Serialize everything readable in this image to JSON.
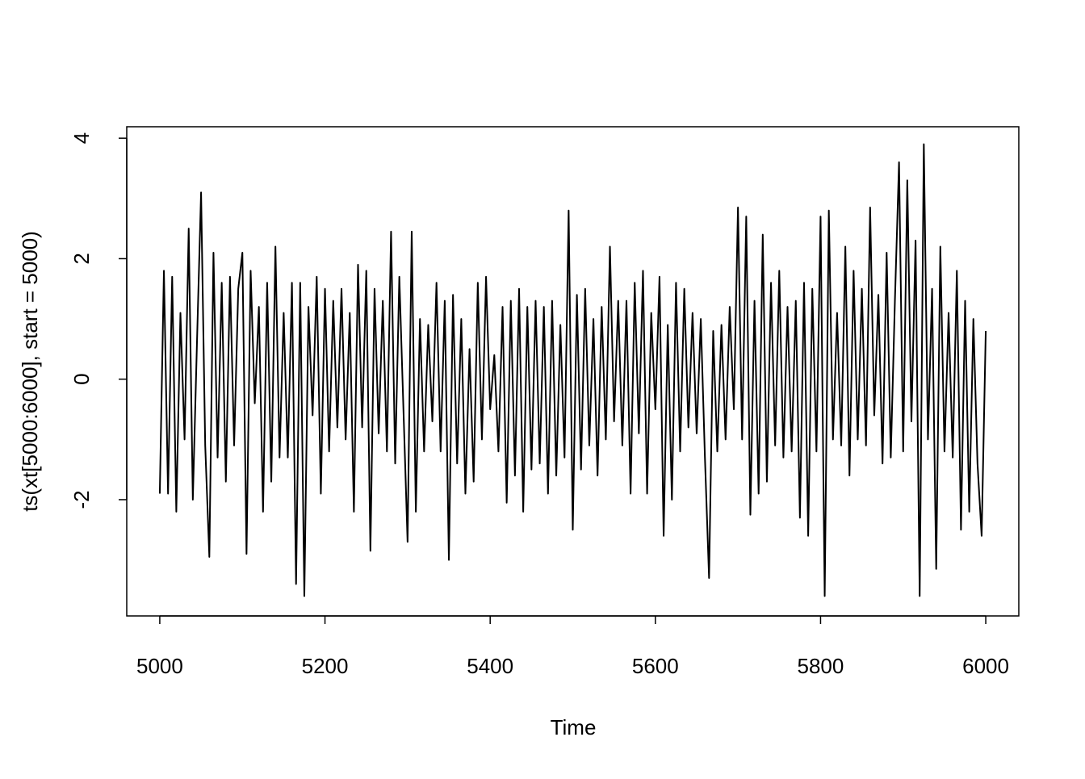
{
  "chart_data": {
    "type": "line",
    "x_label": "Time",
    "y_label": "ts(xt[5000:6000], start = 5000)",
    "x": [
      5000,
      5005,
      5010,
      5015,
      5020,
      5025,
      5030,
      5035,
      5040,
      5045,
      5050,
      5055,
      5060,
      5065,
      5070,
      5075,
      5080,
      5085,
      5090,
      5095,
      5100,
      5105,
      5110,
      5115,
      5120,
      5125,
      5130,
      5135,
      5140,
      5145,
      5150,
      5155,
      5160,
      5165,
      5170,
      5175,
      5180,
      5185,
      5190,
      5195,
      5200,
      5205,
      5210,
      5215,
      5220,
      5225,
      5230,
      5235,
      5240,
      5245,
      5250,
      5255,
      5260,
      5265,
      5270,
      5275,
      5280,
      5285,
      5290,
      5295,
      5300,
      5305,
      5310,
      5315,
      5320,
      5325,
      5330,
      5335,
      5340,
      5345,
      5350,
      5355,
      5360,
      5365,
      5370,
      5375,
      5380,
      5385,
      5390,
      5395,
      5400,
      5405,
      5410,
      5415,
      5420,
      5425,
      5430,
      5435,
      5440,
      5445,
      5450,
      5455,
      5460,
      5465,
      5470,
      5475,
      5480,
      5485,
      5490,
      5495,
      5500,
      5505,
      5510,
      5515,
      5520,
      5525,
      5530,
      5535,
      5540,
      5545,
      5550,
      5555,
      5560,
      5565,
      5570,
      5575,
      5580,
      5585,
      5590,
      5595,
      5600,
      5605,
      5610,
      5615,
      5620,
      5625,
      5630,
      5635,
      5640,
      5645,
      5650,
      5655,
      5660,
      5665,
      5670,
      5675,
      5680,
      5685,
      5690,
      5695,
      5700,
      5705,
      5710,
      5715,
      5720,
      5725,
      5730,
      5735,
      5740,
      5745,
      5750,
      5755,
      5760,
      5765,
      5770,
      5775,
      5780,
      5785,
      5790,
      5795,
      5800,
      5805,
      5810,
      5815,
      5820,
      5825,
      5830,
      5835,
      5840,
      5845,
      5850,
      5855,
      5860,
      5865,
      5870,
      5875,
      5880,
      5885,
      5890,
      5895,
      5900,
      5905,
      5910,
      5915,
      5920,
      5925,
      5930,
      5935,
      5940,
      5945,
      5950,
      5955,
      5960,
      5965,
      5970,
      5975,
      5980,
      5985,
      5990,
      5995,
      6000
    ],
    "series": [
      {
        "color": "#000000",
        "values": [
          -1.9,
          1.8,
          -1.9,
          1.7,
          -2.2,
          1.1,
          -1.0,
          2.5,
          -2.0,
          0.6,
          3.1,
          -1.1,
          -2.95,
          2.1,
          -1.3,
          1.6,
          -1.7,
          1.7,
          -1.1,
          1.5,
          2.1,
          -2.9,
          1.8,
          -0.4,
          1.2,
          -2.2,
          1.6,
          -1.7,
          2.2,
          -1.3,
          1.1,
          -1.3,
          1.6,
          -3.4,
          1.6,
          -3.6,
          1.2,
          -0.6,
          1.7,
          -1.9,
          1.5,
          -1.2,
          1.3,
          -0.8,
          1.5,
          -1.0,
          1.1,
          -2.2,
          1.9,
          -0.8,
          1.8,
          -2.85,
          1.5,
          -0.9,
          1.3,
          -1.2,
          2.45,
          -1.4,
          1.7,
          -0.5,
          -2.7,
          2.45,
          -2.2,
          1.0,
          -1.2,
          0.9,
          -0.7,
          1.6,
          -1.2,
          1.3,
          -3.0,
          1.4,
          -1.4,
          1.0,
          -1.9,
          0.5,
          -1.7,
          1.6,
          -1.0,
          1.7,
          -0.5,
          0.4,
          -1.2,
          1.2,
          -2.05,
          1.3,
          -1.6,
          1.5,
          -2.2,
          1.2,
          -1.5,
          1.3,
          -1.4,
          1.2,
          -1.9,
          1.3,
          -1.6,
          0.9,
          -1.3,
          2.8,
          -2.5,
          1.4,
          -1.5,
          1.5,
          -1.1,
          1.0,
          -1.6,
          1.2,
          -1.0,
          2.2,
          -0.7,
          1.3,
          -1.1,
          1.3,
          -1.9,
          1.6,
          -0.9,
          1.8,
          -1.9,
          1.1,
          -0.5,
          1.7,
          -2.6,
          0.9,
          -2.0,
          1.6,
          -1.2,
          1.5,
          -0.8,
          1.1,
          -0.9,
          1.0,
          -1.3,
          -3.3,
          0.8,
          -1.2,
          0.9,
          -1.0,
          1.2,
          -0.5,
          2.85,
          -1.0,
          2.7,
          -2.25,
          1.3,
          -1.9,
          2.4,
          -1.7,
          1.6,
          -1.1,
          1.8,
          -1.3,
          1.2,
          -1.2,
          1.3,
          -2.3,
          1.6,
          -2.6,
          1.5,
          -1.2,
          2.7,
          -3.6,
          2.8,
          -1.0,
          1.1,
          -1.1,
          2.2,
          -1.6,
          1.8,
          -1.0,
          1.5,
          -1.1,
          2.85,
          -0.6,
          1.4,
          -1.4,
          2.1,
          -1.3,
          1.3,
          3.6,
          -1.2,
          3.3,
          -0.7,
          2.3,
          -3.6,
          3.9,
          -1.0,
          1.5,
          -3.15,
          2.2,
          -1.2,
          1.1,
          -1.3,
          1.8,
          -2.5,
          1.3,
          -2.2,
          1.0,
          -1.4,
          -2.6,
          0.8
        ]
      }
    ],
    "xlim": [
      4960,
      6040
    ],
    "ylim": [
      -3.93,
      4.19
    ],
    "xticks": [
      5000,
      5200,
      5400,
      5600,
      5800,
      6000
    ],
    "yticks": [
      -2,
      0,
      2,
      4
    ]
  }
}
